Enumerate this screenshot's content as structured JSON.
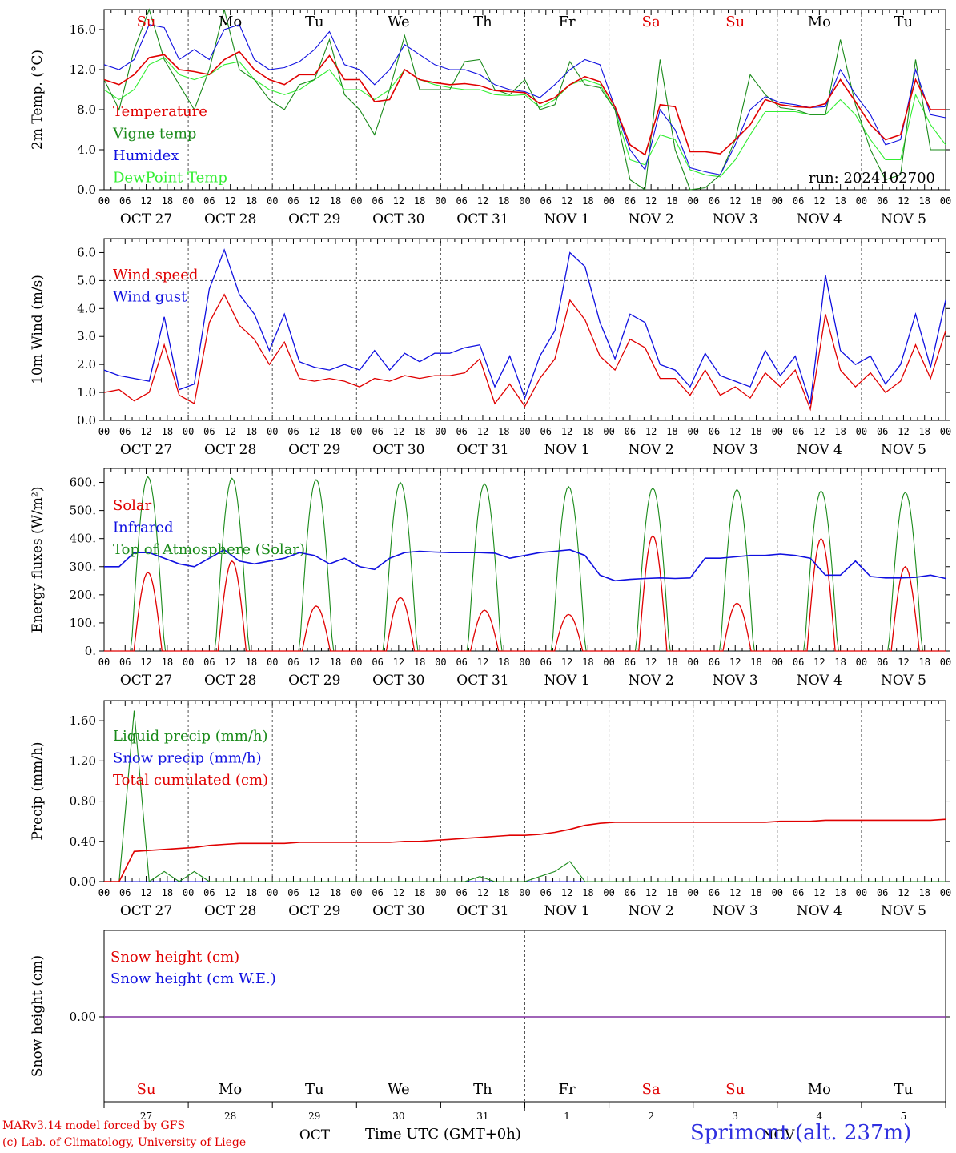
{
  "day_letters": [
    "Su",
    "Mo",
    "Tu",
    "We",
    "Th",
    "Fr",
    "Sa",
    "Su",
    "Mo",
    "Tu"
  ],
  "day_letter_colors": [
    "#e00000",
    "#000000",
    "#000000",
    "#000000",
    "#000000",
    "#000000",
    "#e00000",
    "#e00000",
    "#000000",
    "#000000"
  ],
  "date_labels": [
    "OCT 27",
    "OCT 28",
    "OCT 29",
    "OCT 30",
    "OCT 31",
    "NOV  1",
    "NOV  2",
    "NOV  3",
    "NOV  4",
    "NOV  5"
  ],
  "hour_ticks": [
    "00",
    "06",
    "12",
    "18"
  ],
  "bottom_day_numbers": [
    "27",
    "28",
    "29",
    "30",
    "31",
    "1",
    "2",
    "3",
    "4",
    "5"
  ],
  "bottom_month_labels": {
    "oct": "OCT",
    "nov": "NOV"
  },
  "footer": {
    "model_line": "MARv3.14 model forced by GFS",
    "copyright_line": "(c) Lab. of Climatology, University of Liege",
    "time_label": "Time UTC (GMT+0h)",
    "station": "Sprimont (alt. 237m)"
  },
  "colors": {
    "red": "#e00000",
    "green": "#1a8a1a",
    "blue": "#1010e0",
    "lightgreen": "#33ee33",
    "purple": "#8030a0"
  },
  "chart_data": [
    {
      "type": "line",
      "ylabel": "2m Temp. (°C)",
      "ylim": [
        0,
        18
      ],
      "yticks": [
        "0.0",
        "4.0",
        "8.0",
        "12.0",
        "16.0"
      ],
      "annotation": "run: 2024102700",
      "x_unit": "hours since 2024-10-27 00 UTC, 6-hourly",
      "series": [
        {
          "name": "Temperature",
          "color": "red",
          "values": [
            11,
            10.5,
            11.5,
            13.2,
            13.5,
            12,
            11.8,
            11.5,
            13,
            13.8,
            12,
            11,
            10.5,
            11.5,
            11.5,
            13.4,
            11,
            11,
            8.8,
            9,
            12,
            11,
            10.7,
            10.5,
            10.6,
            10.4,
            9.9,
            9.8,
            9.7,
            8.6,
            9.2,
            10.5,
            11.3,
            10.8,
            8.3,
            4.5,
            3.5,
            8.5,
            8.3,
            3.8,
            3.8,
            3.6,
            5,
            6.5,
            9,
            8.5,
            8.3,
            8.2,
            8.6,
            11,
            8.8,
            6.5,
            5,
            5.5,
            11,
            8,
            8
          ]
        },
        {
          "name": "Vigne temp",
          "color": "green",
          "values": [
            11,
            8,
            14,
            18,
            13,
            10.5,
            8,
            12,
            18,
            12,
            11,
            9,
            8,
            10.5,
            11,
            15,
            9.5,
            8,
            5.5,
            10,
            15.4,
            10,
            10,
            10,
            12.8,
            13,
            10,
            9.5,
            11,
            8,
            8.5,
            12.8,
            10.5,
            10.2,
            8,
            1,
            0,
            13,
            4,
            0,
            0.2,
            1.5,
            5,
            11.5,
            9.5,
            8.2,
            8,
            7.5,
            7.5,
            15,
            8.5,
            4,
            1,
            1.5,
            13,
            4,
            4
          ]
        },
        {
          "name": "Humidex",
          "color": "blue",
          "values": [
            12.5,
            12,
            13,
            16.5,
            16.2,
            13,
            14,
            13,
            16,
            16.5,
            13,
            12,
            12.2,
            12.8,
            14,
            15.8,
            12.5,
            12,
            10.5,
            12,
            14.5,
            13.5,
            12.5,
            12,
            12,
            11.5,
            10.5,
            10,
            9.8,
            9.2,
            10.5,
            12,
            13,
            12.5,
            8.2,
            4,
            2,
            8,
            6,
            2.2,
            1.8,
            1.5,
            4.5,
            8,
            9.3,
            8.7,
            8.5,
            8.2,
            8.3,
            12,
            9.5,
            7.5,
            4.5,
            5,
            12,
            7.5,
            7.2
          ]
        },
        {
          "name": "DewPoint Temp",
          "color": "lightgreen",
          "values": [
            10,
            9,
            10,
            12.5,
            13.2,
            11.5,
            11,
            11.5,
            12.5,
            12.8,
            11,
            10,
            9.5,
            10,
            11,
            12,
            10,
            10,
            9,
            10,
            12,
            11,
            10.5,
            10.2,
            10,
            10,
            9.5,
            9.4,
            9.5,
            8.2,
            9,
            10.5,
            11,
            10.5,
            8,
            3,
            2.5,
            5.5,
            5,
            2,
            1.5,
            1.3,
            3,
            5.5,
            7.8,
            7.8,
            7.8,
            7.5,
            7.5,
            9,
            7.5,
            5,
            3,
            3,
            9.5,
            6.5,
            4.5
          ]
        }
      ]
    },
    {
      "type": "line",
      "ylabel": "10m Wind (m/s)",
      "ylim": [
        0,
        6.5
      ],
      "yticks": [
        "0.0",
        "1.0",
        "2.0",
        "3.0",
        "4.0",
        "5.0",
        "6.0"
      ],
      "reference_line": 5.0,
      "series": [
        {
          "name": "Wind speed",
          "color": "red",
          "values": [
            1,
            1.1,
            0.7,
            1,
            2.7,
            0.9,
            0.6,
            3.5,
            4.5,
            3.4,
            2.9,
            2,
            2.8,
            1.5,
            1.4,
            1.5,
            1.4,
            1.2,
            1.5,
            1.4,
            1.6,
            1.5,
            1.6,
            1.6,
            1.7,
            2.2,
            0.6,
            1.3,
            0.5,
            1.5,
            2.2,
            4.3,
            3.6,
            2.3,
            1.8,
            2.9,
            2.6,
            1.5,
            1.5,
            0.9,
            1.8,
            0.9,
            1.2,
            0.8,
            1.7,
            1.2,
            1.8,
            0.4,
            3.8,
            1.8,
            1.2,
            1.7,
            1,
            1.4,
            2.7,
            1.5,
            3.2
          ]
        },
        {
          "name": "Wind gust",
          "color": "blue",
          "values": [
            1.8,
            1.6,
            1.5,
            1.4,
            3.7,
            1.1,
            1.3,
            4.7,
            6.1,
            4.5,
            3.8,
            2.5,
            3.8,
            2.1,
            1.9,
            1.8,
            2,
            1.8,
            2.5,
            1.8,
            2.4,
            2.1,
            2.4,
            2.4,
            2.6,
            2.7,
            1.2,
            2.3,
            0.8,
            2.3,
            3.2,
            6,
            5.5,
            3.5,
            2.2,
            3.8,
            3.5,
            2,
            1.8,
            1.2,
            2.4,
            1.6,
            1.4,
            1.2,
            2.5,
            1.6,
            2.3,
            0.6,
            5.2,
            2.5,
            2,
            2.3,
            1.3,
            2,
            3.8,
            1.9,
            4.3
          ]
        }
      ]
    },
    {
      "type": "line",
      "ylabel": "Energy fluxes (W/m²)",
      "ylim": [
        0,
        650
      ],
      "yticks": [
        "0.",
        "100.",
        "200.",
        "300.",
        "400.",
        "500.",
        "600."
      ],
      "series": [
        {
          "name": "Solar",
          "color": "red",
          "peaks": [
            280,
            320,
            160,
            190,
            145,
            130,
            410,
            170,
            400,
            300
          ]
        },
        {
          "name": "Infrared",
          "color": "blue",
          "values": [
            300,
            300,
            350,
            350,
            330,
            310,
            300,
            330,
            360,
            320,
            310,
            320,
            330,
            350,
            340,
            310,
            330,
            300,
            290,
            330,
            350,
            355,
            352,
            350,
            350,
            350,
            348,
            330,
            340,
            350,
            355,
            360,
            340,
            270,
            250,
            255,
            258,
            260,
            258,
            260,
            330,
            330,
            335,
            340,
            340,
            345,
            340,
            330,
            270,
            270,
            320,
            265,
            260,
            260,
            262,
            270,
            258
          ]
        },
        {
          "name": "Top of Atmosphere (Solar)",
          "color": "green",
          "peaks": [
            620,
            615,
            610,
            600,
            595,
            585,
            580,
            575,
            570,
            565
          ]
        }
      ]
    },
    {
      "type": "line",
      "ylabel": "Precip (mm/h)",
      "ylim": [
        0,
        1.8
      ],
      "yticks": [
        "0.00",
        "0.40",
        "0.80",
        "1.20",
        "1.60"
      ],
      "series": [
        {
          "name": "Liquid precip (mm/h)",
          "color": "green",
          "values": [
            0,
            0,
            1.7,
            0,
            0.1,
            0,
            0.1,
            0,
            0,
            0,
            0,
            0,
            0,
            0,
            0,
            0,
            0,
            0,
            0,
            0,
            0,
            0,
            0,
            0,
            0,
            0.05,
            0,
            0,
            0,
            0.05,
            0.1,
            0.2,
            0,
            0,
            0,
            0,
            0,
            0,
            0,
            0,
            0,
            0,
            0,
            0,
            0,
            0,
            0,
            0,
            0,
            0,
            0,
            0,
            0,
            0,
            0,
            0,
            0
          ]
        },
        {
          "name": "Snow precip (mm/h)",
          "color": "blue",
          "values": [
            0,
            0,
            0,
            0,
            0,
            0,
            0,
            0,
            0,
            0,
            0,
            0,
            0,
            0,
            0,
            0,
            0,
            0,
            0,
            0,
            0,
            0,
            0,
            0,
            0,
            0,
            0,
            0,
            0,
            0,
            0,
            0,
            0,
            0,
            0,
            0,
            0,
            0,
            0,
            0,
            0,
            0,
            0,
            0,
            0,
            0,
            0,
            0,
            0,
            0,
            0,
            0,
            0,
            0,
            0,
            0,
            0
          ]
        },
        {
          "name": "Total cumulated (cm)",
          "color": "red",
          "values": [
            0,
            0,
            0.3,
            0.31,
            0.32,
            0.33,
            0.34,
            0.36,
            0.37,
            0.38,
            0.38,
            0.38,
            0.38,
            0.39,
            0.39,
            0.39,
            0.39,
            0.39,
            0.39,
            0.39,
            0.4,
            0.4,
            0.41,
            0.42,
            0.43,
            0.44,
            0.45,
            0.46,
            0.46,
            0.47,
            0.49,
            0.52,
            0.56,
            0.58,
            0.59,
            0.59,
            0.59,
            0.59,
            0.59,
            0.59,
            0.59,
            0.59,
            0.59,
            0.59,
            0.59,
            0.6,
            0.6,
            0.6,
            0.61,
            0.61,
            0.61,
            0.61,
            0.61,
            0.61,
            0.61,
            0.61,
            0.62
          ]
        }
      ]
    },
    {
      "type": "line",
      "ylabel": "Snow height (cm)",
      "yticks": [
        "0.00"
      ],
      "series": [
        {
          "name": "Snow height (cm)",
          "color": "red",
          "values": [
            0,
            0
          ]
        },
        {
          "name": "Snow height (cm W.E.)",
          "color": "blue",
          "values": [
            0,
            0
          ]
        }
      ]
    }
  ]
}
